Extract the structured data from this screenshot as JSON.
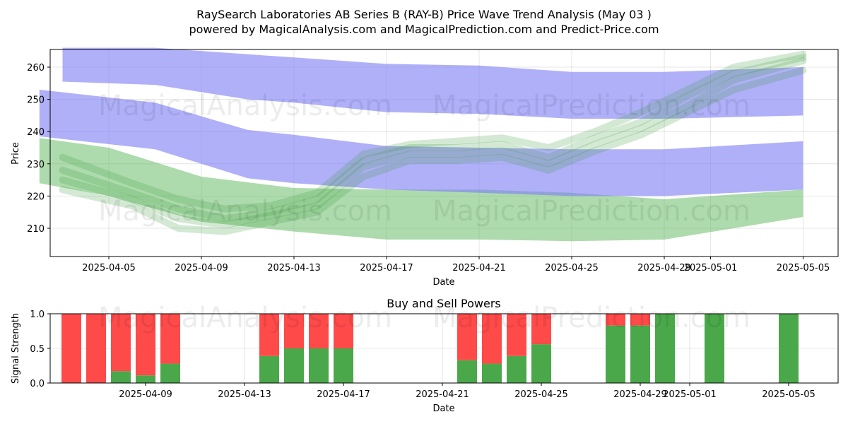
{
  "title_line1": "RaySearch Laboratories AB Series B (RAY-B) Price Wave Trend Analysis (May 03 )",
  "title_line2": "powered by MagicalAnalysis.com and MagicalPrediction.com and Predict-Price.com",
  "watermarks": [
    "MagicalAnalysis.com",
    "MagicalPrediction.com"
  ],
  "colors": {
    "buy": "#4aa84a",
    "sell": "#ff4a4a",
    "band_blue": "#7f7ff5",
    "band_green": "#5cb85c"
  },
  "chart_data": [
    {
      "type": "area",
      "xlabel": "Date",
      "ylabel": "Price",
      "xlim": [
        "2025-04-02",
        "2025-05-06"
      ],
      "ylim": [
        201,
        266
      ],
      "x_ticks": [
        "2025-04-05",
        "2025-04-09",
        "2025-04-13",
        "2025-04-17",
        "2025-04-21",
        "2025-04-25",
        "2025-04-29",
        "2025-05-01",
        "2025-05-05"
      ],
      "y_ticks": [
        210,
        220,
        230,
        240,
        250,
        260
      ],
      "grid": true,
      "blue_bands": [
        {
          "x": [
            "2025-04-03",
            "2025-04-07",
            "2025-04-11",
            "2025-04-13",
            "2025-04-17",
            "2025-04-21",
            "2025-04-25",
            "2025-04-29",
            "2025-05-05"
          ],
          "upper": [
            266,
            266,
            264,
            263,
            261,
            260.5,
            258.5,
            258.5,
            260
          ],
          "lower": [
            255.5,
            254.5,
            250,
            249,
            246,
            245.5,
            244,
            244,
            245
          ]
        },
        {
          "x": [
            "2025-04-02",
            "2025-04-07",
            "2025-04-11",
            "2025-04-13",
            "2025-04-17",
            "2025-04-21",
            "2025-04-25",
            "2025-04-29",
            "2025-05-05"
          ],
          "upper": [
            253,
            249,
            240.5,
            239,
            235.5,
            235,
            234.5,
            234.5,
            237
          ],
          "lower": [
            238.5,
            234.5,
            225.5,
            224,
            222,
            221,
            220,
            220,
            222
          ]
        }
      ],
      "green_bands": [
        {
          "x": [
            "2025-04-02",
            "2025-04-05",
            "2025-04-09",
            "2025-04-13",
            "2025-04-17",
            "2025-04-21",
            "2025-04-25",
            "2025-04-29",
            "2025-05-05"
          ],
          "upper": [
            238,
            235,
            226,
            222.5,
            222,
            222,
            221,
            219,
            222
          ],
          "lower": [
            224,
            220,
            212,
            209,
            206.5,
            206.5,
            206,
            206.5,
            213.5
          ]
        }
      ],
      "wave_paths": [
        {
          "x": [
            "2025-04-03",
            "2025-04-06",
            "2025-04-08",
            "2025-04-10",
            "2025-04-12",
            "2025-04-14",
            "2025-04-16",
            "2025-04-18",
            "2025-04-20",
            "2025-04-22",
            "2025-04-24",
            "2025-04-26",
            "2025-04-28",
            "2025-04-30",
            "2025-05-02",
            "2025-05-05"
          ],
          "y": [
            225,
            219,
            213,
            211,
            214,
            217,
            229,
            233,
            233,
            234,
            230,
            236,
            241,
            248,
            256,
            262
          ]
        },
        {
          "x": [
            "2025-04-03",
            "2025-04-06",
            "2025-04-08",
            "2025-04-10",
            "2025-04-12",
            "2025-04-14",
            "2025-04-16",
            "2025-04-18",
            "2025-04-20",
            "2025-04-22",
            "2025-04-24",
            "2025-04-26",
            "2025-04-28",
            "2025-04-30",
            "2025-05-02",
            "2025-05-05"
          ],
          "y": [
            228,
            221,
            216,
            213,
            215,
            219,
            231,
            235,
            235,
            236,
            232,
            238,
            243,
            251,
            258,
            263
          ]
        },
        {
          "x": [
            "2025-04-03",
            "2025-04-06",
            "2025-04-08",
            "2025-04-10",
            "2025-04-12",
            "2025-04-14",
            "2025-04-16",
            "2025-04-18",
            "2025-04-20",
            "2025-04-22",
            "2025-04-24",
            "2025-04-26",
            "2025-04-28",
            "2025-04-30",
            "2025-05-02",
            "2025-05-05"
          ],
          "y": [
            222,
            217,
            210,
            209,
            212,
            215,
            226,
            231,
            231,
            232,
            228,
            234,
            239,
            246,
            253,
            259
          ]
        },
        {
          "x": [
            "2025-04-03",
            "2025-04-06",
            "2025-04-08",
            "2025-04-10",
            "2025-04-12",
            "2025-04-14",
            "2025-04-16",
            "2025-04-18",
            "2025-04-20",
            "2025-04-22",
            "2025-04-24",
            "2025-04-26",
            "2025-04-28",
            "2025-04-30",
            "2025-05-02",
            "2025-05-05"
          ],
          "y": [
            232,
            224,
            219,
            216,
            217,
            221,
            233,
            236,
            237,
            238,
            235,
            240,
            246,
            253,
            260,
            264
          ]
        }
      ]
    },
    {
      "type": "bar",
      "title": "Buy and Sell Powers",
      "xlabel": "Date",
      "ylabel": "Signal Strength",
      "ylim": [
        0,
        1
      ],
      "y_ticks": [
        "0.0",
        "0.5",
        "1.0"
      ],
      "x_ticks": [
        "2025-04-09",
        "2025-04-13",
        "2025-04-17",
        "2025-04-21",
        "2025-04-25",
        "2025-04-29",
        "2025-05-01",
        "2025-05-05"
      ],
      "grid": true,
      "dates": [
        "2025-04-06",
        "2025-04-07",
        "2025-04-08",
        "2025-04-09",
        "2025-04-10",
        "2025-04-14",
        "2025-04-15",
        "2025-04-16",
        "2025-04-17",
        "2025-04-22",
        "2025-04-23",
        "2025-04-24",
        "2025-04-25",
        "2025-04-28",
        "2025-04-29",
        "2025-04-30",
        "2025-05-02",
        "2025-05-05"
      ],
      "buy": [
        0,
        0,
        0.17,
        0.11,
        0.28,
        0.39,
        0.5,
        0.5,
        0.5,
        0.33,
        0.28,
        0.39,
        0.56,
        0.83,
        0.83,
        1,
        1,
        1
      ],
      "sell": [
        1,
        1,
        0.83,
        0.89,
        0.72,
        0.61,
        0.5,
        0.5,
        0.5,
        0.67,
        0.72,
        0.61,
        0.44,
        0.17,
        0.17,
        0,
        0,
        0
      ]
    }
  ]
}
